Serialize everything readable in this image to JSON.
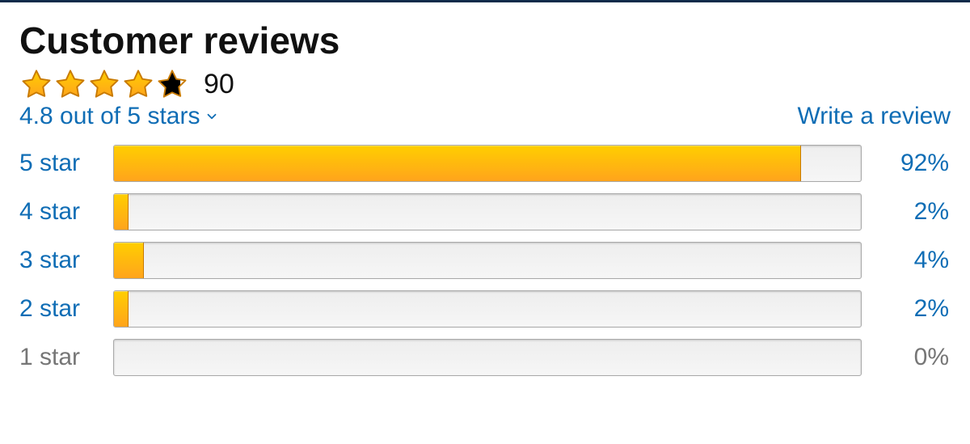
{
  "colors": {
    "link": "#0f6db5",
    "text": "#111111",
    "disabled": "#767676",
    "star_fill_top": "#ffce00",
    "star_fill_bottom": "#ffa41c",
    "star_stroke": "#c87a00",
    "bar_track_top": "#eeeeee",
    "bar_track_bottom": "#f6f6f6",
    "bar_border": "#a9a9a9",
    "top_border": "#0e2b4a",
    "background": "#ffffff"
  },
  "header": {
    "title": "Customer reviews",
    "total_reviews": "90",
    "star_rating": 4.8,
    "stars_shown": 5,
    "summary_text": "4.8 out of 5 stars",
    "write_review_label": "Write a review"
  },
  "breakdown": {
    "rows": [
      {
        "label": "5 star",
        "percent": 92,
        "percent_label": "92%",
        "disabled": false
      },
      {
        "label": "4 star",
        "percent": 2,
        "percent_label": "2%",
        "disabled": false
      },
      {
        "label": "3 star",
        "percent": 4,
        "percent_label": "4%",
        "disabled": false
      },
      {
        "label": "2 star",
        "percent": 2,
        "percent_label": "2%",
        "disabled": false
      },
      {
        "label": "1 star",
        "percent": 0,
        "percent_label": "0%",
        "disabled": true
      }
    ]
  }
}
